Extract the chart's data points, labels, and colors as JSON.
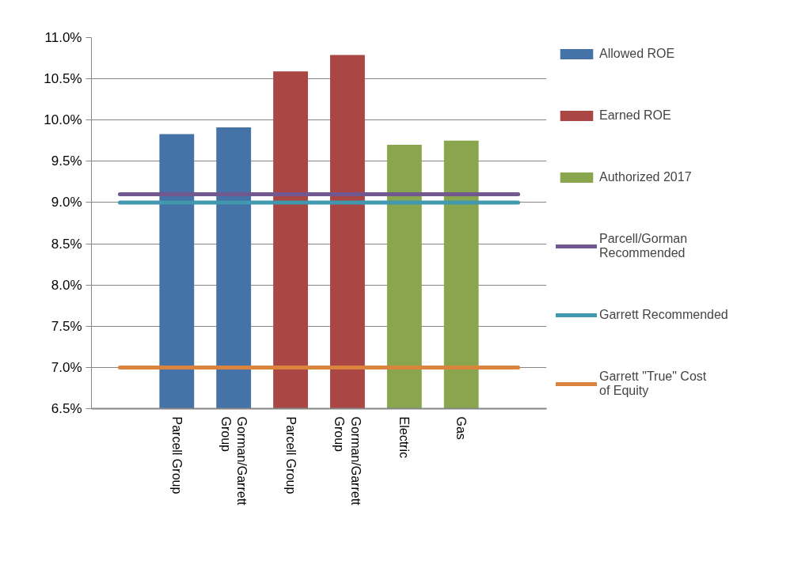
{
  "chart_data": {
    "type": "bar",
    "categories": [
      null,
      "Parcell Group",
      "Gorman/Garrett Group",
      "Parcell Group",
      "Gorman/Garrett Group",
      "Electric",
      "Gas",
      null
    ],
    "series": [
      {
        "name": "Allowed ROE",
        "color": "#4572a7",
        "values": [
          null,
          9.83,
          9.91,
          null,
          null,
          null,
          null,
          null
        ]
      },
      {
        "name": "Earned ROE",
        "color": "#aa4643",
        "values": [
          null,
          null,
          null,
          10.59,
          10.79,
          null,
          null,
          null
        ]
      },
      {
        "name": "Authorized 2017",
        "color": "#89a54e",
        "values": [
          null,
          null,
          null,
          null,
          null,
          9.7,
          9.75,
          null
        ]
      },
      {
        "name": "Parcell/Gorman Recommended",
        "type": "line",
        "color": "#71588f",
        "values": [
          9.1,
          9.1,
          9.1,
          9.1,
          9.1,
          9.1,
          9.1,
          9.1
        ]
      },
      {
        "name": "Garrett Recommended",
        "type": "line",
        "color": "#4198af",
        "values": [
          9.0,
          9.0,
          9.0,
          9.0,
          9.0,
          9.0,
          9.0,
          9.0
        ]
      },
      {
        "name": "Garrett \"True\" Cost of Equity",
        "type": "line",
        "color": "#db843d",
        "values": [
          7.0,
          7.0,
          7.0,
          7.0,
          7.0,
          7.0,
          7.0,
          7.0
        ]
      }
    ],
    "ylim": [
      6.5,
      11.0
    ],
    "yticks": [
      {
        "value": 6.5,
        "label": "6.5%"
      },
      {
        "value": 7.0,
        "label": "7.0%"
      },
      {
        "value": 7.5,
        "label": "7.5%"
      },
      {
        "value": 8.0,
        "label": "8.0%"
      },
      {
        "value": 8.5,
        "label": "8.5%"
      },
      {
        "value": 9.0,
        "label": "9.0%"
      },
      {
        "value": 9.5,
        "label": "9.5%"
      },
      {
        "value": 10.0,
        "label": "10.0%"
      },
      {
        "value": 10.5,
        "label": "10.5%"
      },
      {
        "value": 11.0,
        "label": "11.0%"
      }
    ],
    "grid": "y",
    "legend": "right"
  }
}
